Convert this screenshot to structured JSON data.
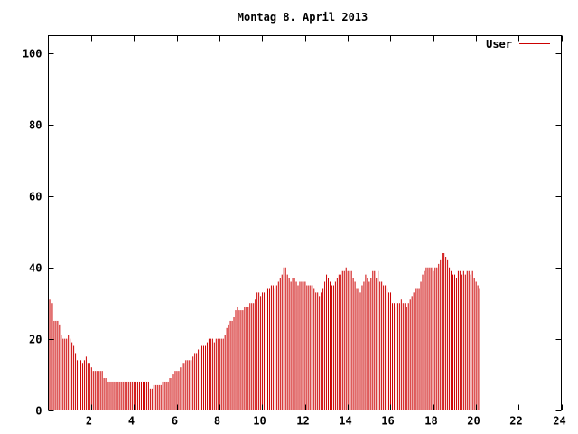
{
  "chart_data": {
    "type": "bar",
    "title": "Montag 8. April 2013",
    "xlabel": "",
    "ylabel": "",
    "xlim": [
      0,
      24
    ],
    "ylim": [
      0,
      105
    ],
    "x_ticks": [
      2,
      4,
      6,
      8,
      10,
      12,
      14,
      16,
      18,
      20,
      22,
      24
    ],
    "y_ticks": [
      0,
      20,
      40,
      60,
      80,
      100
    ],
    "grid": false,
    "legend_position": "top-right",
    "series": [
      {
        "name": "User",
        "color": "#cc0000",
        "bar_interval": 0.0833,
        "values": [
          31,
          31,
          30,
          25,
          25,
          25,
          24,
          21,
          20,
          20,
          20,
          21,
          20,
          19,
          18,
          16,
          14,
          14,
          14,
          13,
          14,
          15,
          13,
          13,
          12,
          11,
          11,
          11,
          11,
          11,
          11,
          9,
          9,
          8,
          8,
          8,
          8,
          8,
          8,
          8,
          8,
          8,
          8,
          8,
          8,
          8,
          8,
          8,
          8,
          8,
          8,
          8,
          8,
          8,
          8,
          8,
          8,
          6,
          6,
          7,
          7,
          7,
          7,
          7,
          8,
          8,
          8,
          8,
          9,
          9,
          10,
          11,
          11,
          11,
          12,
          13,
          13,
          14,
          14,
          14,
          14,
          15,
          16,
          16,
          17,
          17,
          18,
          18,
          18,
          19,
          20,
          20,
          20,
          19,
          20,
          20,
          20,
          20,
          20,
          21,
          23,
          24,
          25,
          25,
          26,
          28,
          29,
          28,
          28,
          28,
          29,
          29,
          29,
          30,
          30,
          30,
          31,
          33,
          33,
          32,
          33,
          33,
          34,
          34,
          34,
          35,
          35,
          34,
          35,
          36,
          37,
          38,
          40,
          40,
          38,
          37,
          36,
          37,
          37,
          36,
          35,
          36,
          36,
          36,
          36,
          35,
          35,
          35,
          35,
          34,
          33,
          33,
          32,
          33,
          34,
          36,
          38,
          37,
          36,
          35,
          35,
          36,
          37,
          38,
          38,
          39,
          39,
          40,
          39,
          39,
          39,
          37,
          36,
          34,
          34,
          33,
          35,
          36,
          38,
          37,
          36,
          37,
          39,
          39,
          37,
          39,
          36,
          36,
          35,
          35,
          34,
          33,
          33,
          30,
          30,
          29,
          30,
          30,
          31,
          30,
          30,
          29,
          30,
          31,
          32,
          33,
          34,
          34,
          34,
          36,
          38,
          39,
          40,
          40,
          40,
          40,
          39,
          40,
          40,
          41,
          42,
          44,
          44,
          43,
          42,
          40,
          39,
          38,
          38,
          37,
          39,
          39,
          38,
          39,
          38,
          39,
          39,
          38,
          39,
          37,
          36,
          35,
          34
        ]
      }
    ]
  }
}
